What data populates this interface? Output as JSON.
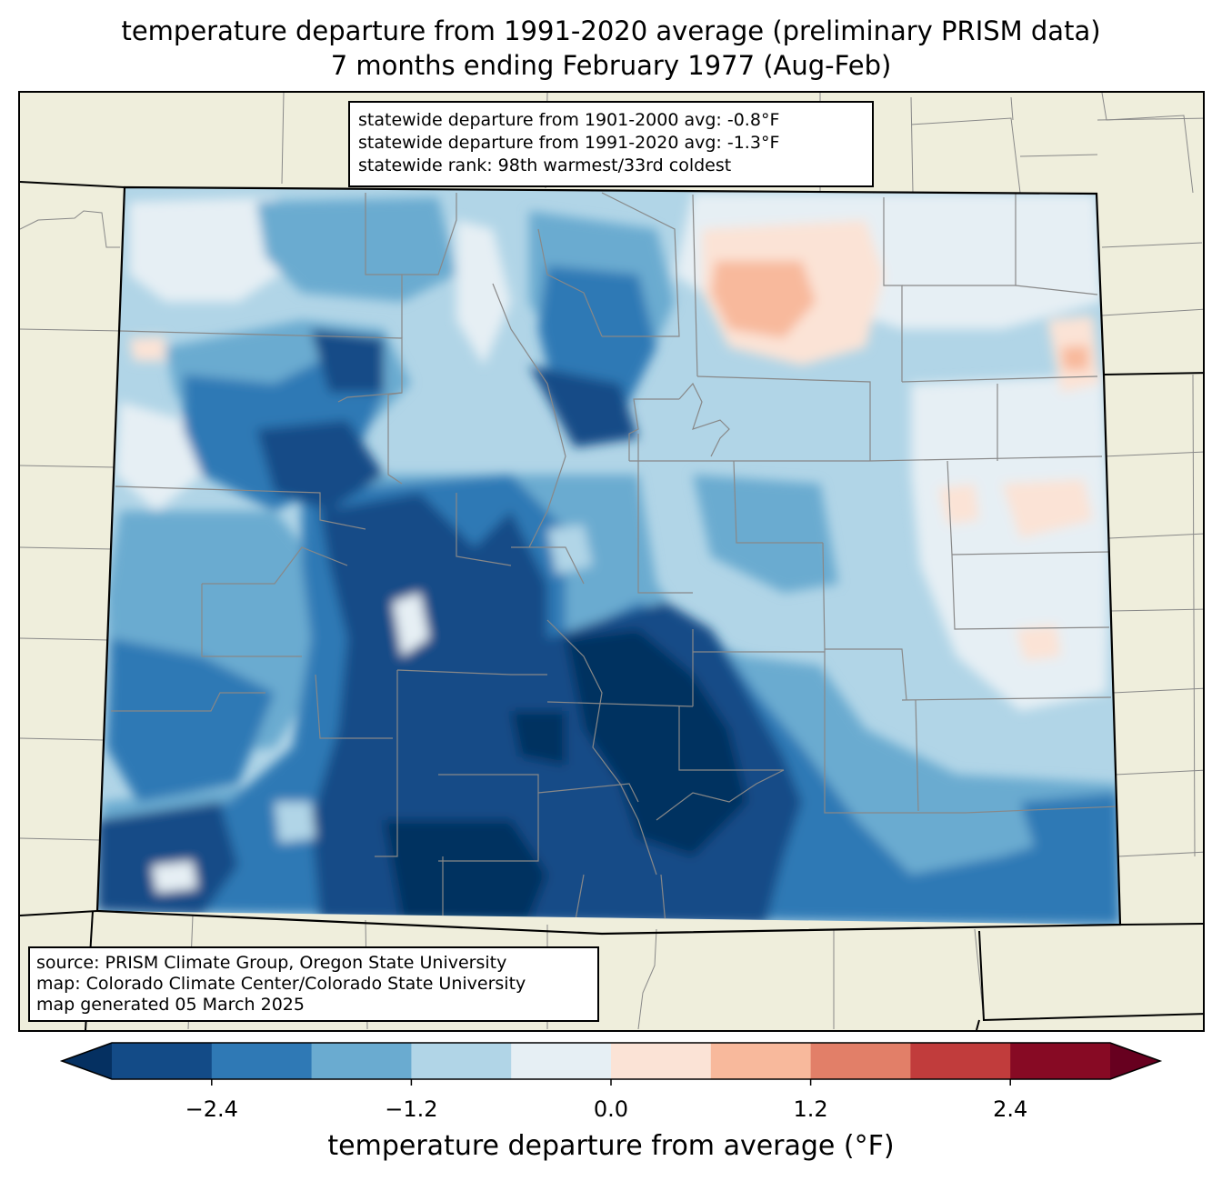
{
  "title": {
    "line1": "temperature departure from 1991-2020 average (preliminary PRISM data)",
    "line2": "7 months ending February 1977 (Aug-Feb)"
  },
  "stats": {
    "line1": "statewide departure from 1901-2000 avg: -0.8°F",
    "line2": "statewide departure from 1991-2020 avg: -1.3°F",
    "line3": "statewide rank: 98th warmest/33rd coldest"
  },
  "source": {
    "line1": "source: PRISM Climate Group, Oregon State University",
    "line2": "map: Colorado Climate Center/Colorado State University",
    "line3": "map generated 05 March 2025"
  },
  "colorbar": {
    "label": "temperature departure from average (°F)",
    "min": -3.0,
    "max": 3.0,
    "bounds": [
      -3.0,
      -2.4,
      -1.8,
      -1.2,
      -0.6,
      0.0,
      0.6,
      1.2,
      1.8,
      2.4,
      3.0
    ],
    "colors": [
      "#134b87",
      "#2f79b5",
      "#6aabd0",
      "#b1d5e7",
      "#e6eff4",
      "#fbe3d6",
      "#f8b99c",
      "#e27f68",
      "#c13c3c",
      "#870a24"
    ],
    "under_color": "#053061",
    "over_color": "#67001f",
    "ticks": [
      {
        "value": -2.4,
        "label": "−2.4"
      },
      {
        "value": -1.2,
        "label": "−1.2"
      },
      {
        "value": 0.0,
        "label": "0.0"
      },
      {
        "value": 1.2,
        "label": "1.2"
      },
      {
        "value": 2.4,
        "label": "2.4"
      }
    ]
  },
  "map_colors": {
    "land": "#efeedc",
    "county_lines": "#888888",
    "state_lines": "#000000"
  }
}
